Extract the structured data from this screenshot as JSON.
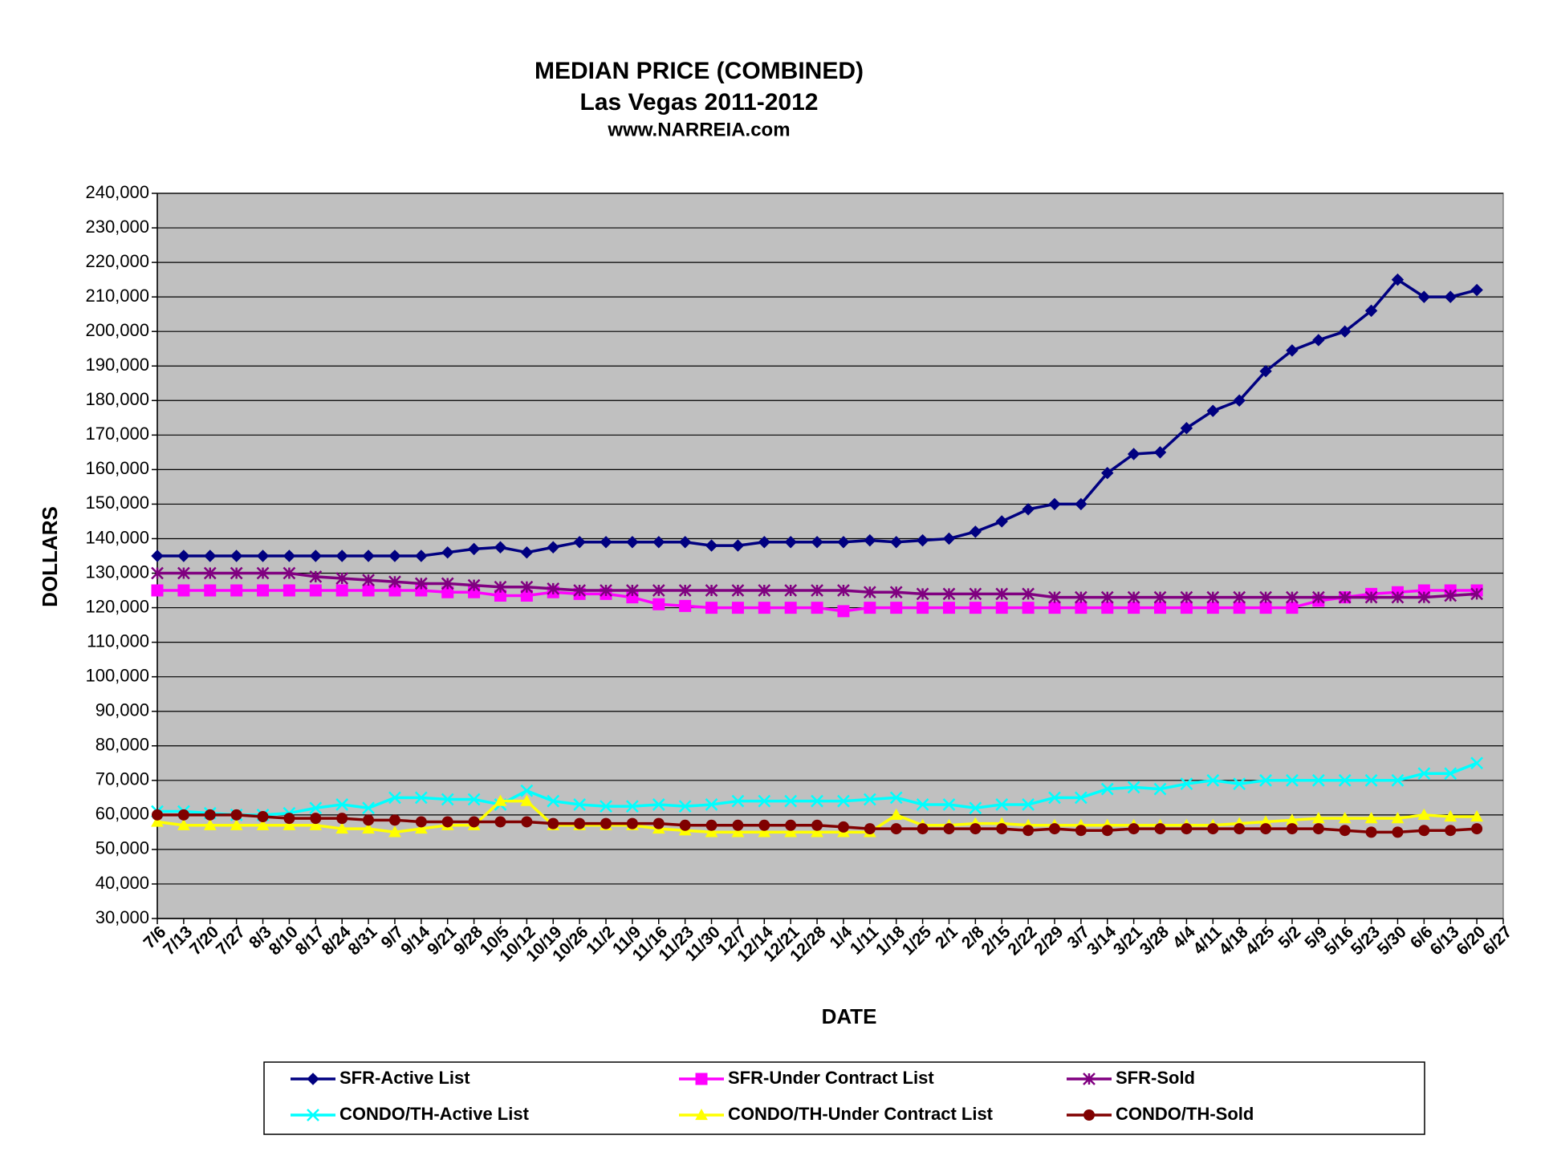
{
  "chart_data": {
    "type": "line",
    "title": "MEDIAN PRICE  (COMBINED)",
    "subtitle": "Las Vegas 2011-2012",
    "source": "www.NARREIA.com",
    "x_label": "DATE",
    "y_label": "DOLLARS",
    "categories": [
      "7/6",
      "7/13",
      "7/20",
      "7/27",
      "8/3",
      "8/10",
      "8/17",
      "8/24",
      "8/31",
      "9/7",
      "9/14",
      "9/21",
      "9/28",
      "10/5",
      "10/12",
      "10/19",
      "10/26",
      "11/2",
      "11/9",
      "11/16",
      "11/23",
      "11/30",
      "12/7",
      "12/14",
      "12/21",
      "12/28",
      "1/4",
      "1/11",
      "1/18",
      "1/25",
      "2/1",
      "2/8",
      "2/15",
      "2/22",
      "2/29",
      "3/7",
      "3/14",
      "3/21",
      "3/28",
      "4/4",
      "4/11",
      "4/18",
      "4/25",
      "5/2",
      "5/9",
      "5/16",
      "5/23",
      "5/30",
      "6/6",
      "6/13",
      "6/20",
      "6/27"
    ],
    "series": [
      {
        "name": "SFR-Active List",
        "color": "#000080",
        "marker": "diamond",
        "values": [
          135000,
          135000,
          135000,
          135000,
          135000,
          135000,
          135000,
          135000,
          135000,
          135000,
          135000,
          136000,
          137000,
          137500,
          136000,
          137500,
          139000,
          139000,
          139000,
          139000,
          139000,
          138000,
          138000,
          139000,
          139000,
          139000,
          139000,
          139500,
          139000,
          139500,
          140000,
          142000,
          145000,
          148500,
          150000,
          150000,
          159000,
          164500,
          165000,
          172000,
          177000,
          180000,
          188500,
          194500,
          197500,
          200000,
          206000,
          215000,
          210000,
          210000,
          212000,
          null
        ]
      },
      {
        "name": "SFR-Under Contract List",
        "color": "#ff00ff",
        "marker": "square",
        "values": [
          125000,
          125000,
          125000,
          125000,
          125000,
          125000,
          125000,
          125000,
          125000,
          125000,
          125000,
          124500,
          124500,
          123500,
          123500,
          124500,
          124000,
          124000,
          123000,
          121000,
          120500,
          120000,
          120000,
          120000,
          120000,
          120000,
          119000,
          120000,
          120000,
          120000,
          120000,
          120000,
          120000,
          120000,
          120000,
          120000,
          120000,
          120000,
          120000,
          120000,
          120000,
          120000,
          120000,
          120000,
          122000,
          123000,
          124000,
          124500,
          125000,
          125000,
          125000,
          null
        ]
      },
      {
        "name": "SFR-Sold",
        "color": "#800080",
        "marker": "asterisk",
        "values": [
          130000,
          130000,
          130000,
          130000,
          130000,
          130000,
          129000,
          128500,
          128000,
          127500,
          127000,
          127000,
          126500,
          126000,
          126000,
          125500,
          125000,
          125000,
          125000,
          125000,
          125000,
          125000,
          125000,
          125000,
          125000,
          125000,
          125000,
          124500,
          124500,
          124000,
          124000,
          124000,
          124000,
          124000,
          123000,
          123000,
          123000,
          123000,
          123000,
          123000,
          123000,
          123000,
          123000,
          123000,
          123000,
          123000,
          123000,
          123000,
          123000,
          123500,
          124000,
          null
        ]
      },
      {
        "name": "CONDO/TH-Active List",
        "color": "#00ffff",
        "marker": "x",
        "values": [
          61000,
          61000,
          60500,
          60000,
          60000,
          60500,
          62000,
          63000,
          62000,
          65000,
          65000,
          64500,
          64500,
          63000,
          67000,
          64000,
          63000,
          62500,
          62500,
          63000,
          62500,
          63000,
          64000,
          64000,
          64000,
          64000,
          64000,
          64500,
          65000,
          63000,
          63000,
          62000,
          63000,
          63000,
          65000,
          65000,
          67500,
          68000,
          67500,
          69000,
          70000,
          69000,
          70000,
          70000,
          70000,
          70000,
          70000,
          70000,
          72000,
          72000,
          75000,
          null
        ]
      },
      {
        "name": "CONDO/TH-Under Contract List",
        "color": "#ffff00",
        "marker": "triangle",
        "values": [
          58000,
          57000,
          57000,
          57000,
          57000,
          57000,
          57000,
          56000,
          56000,
          55000,
          56000,
          57000,
          57000,
          64000,
          64000,
          57000,
          57000,
          57000,
          57000,
          56000,
          55500,
          55000,
          55000,
          55000,
          55000,
          55000,
          55000,
          55000,
          60000,
          57000,
          57000,
          57500,
          57500,
          57000,
          57000,
          57000,
          57000,
          57000,
          57000,
          57000,
          57000,
          57500,
          58000,
          58500,
          59000,
          59000,
          59000,
          59000,
          60000,
          59500,
          59500,
          null
        ]
      },
      {
        "name": "CONDO/TH-Sold",
        "color": "#800000",
        "marker": "circle",
        "values": [
          60000,
          60000,
          60000,
          60000,
          59500,
          59000,
          59000,
          59000,
          58500,
          58500,
          58000,
          58000,
          58000,
          58000,
          58000,
          57500,
          57500,
          57500,
          57500,
          57500,
          57000,
          57000,
          57000,
          57000,
          57000,
          57000,
          56500,
          56000,
          56000,
          56000,
          56000,
          56000,
          56000,
          55500,
          56000,
          55500,
          55500,
          56000,
          56000,
          56000,
          56000,
          56000,
          56000,
          56000,
          56000,
          55500,
          55000,
          55000,
          55500,
          55500,
          56000,
          null
        ]
      }
    ],
    "ylim": [
      30000,
      240000
    ],
    "yticks": [
      {
        "value": 30000,
        "label": "30,000"
      },
      {
        "value": 40000,
        "label": "40,000"
      },
      {
        "value": 50000,
        "label": "50,000"
      },
      {
        "value": 60000,
        "label": "60,000"
      },
      {
        "value": 70000,
        "label": "70,000"
      },
      {
        "value": 80000,
        "label": "80,000"
      },
      {
        "value": 90000,
        "label": "90,000"
      },
      {
        "value": 100000,
        "label": "100,000"
      },
      {
        "value": 110000,
        "label": "110,000"
      },
      {
        "value": 120000,
        "label": "120,000"
      },
      {
        "value": 130000,
        "label": "130,000"
      },
      {
        "value": 140000,
        "label": "140,000"
      },
      {
        "value": 150000,
        "label": "150,000"
      },
      {
        "value": 160000,
        "label": "160,000"
      },
      {
        "value": 170000,
        "label": "170,000"
      },
      {
        "value": 180000,
        "label": "180,000"
      },
      {
        "value": 190000,
        "label": "190,000"
      },
      {
        "value": 200000,
        "label": "200,000"
      },
      {
        "value": 210000,
        "label": "210,000"
      },
      {
        "value": 220000,
        "label": "220,000"
      },
      {
        "value": 230000,
        "label": "230,000"
      },
      {
        "value": 240000,
        "label": "240,000"
      }
    ],
    "grid": true,
    "plot_background": "#c0c0c0",
    "legend": "bottom"
  }
}
